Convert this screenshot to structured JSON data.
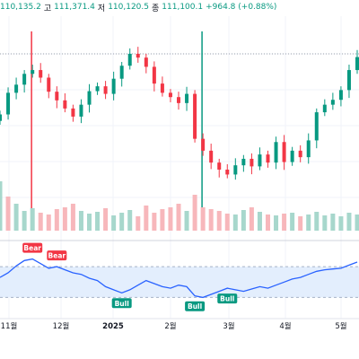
{
  "ohlc": {
    "open_value": "110,135.2",
    "high_label": "고",
    "high_value": "111,371.4",
    "low_label": "저",
    "low_value": "110,120.5",
    "close_label": "종",
    "close_value": "111,100.1",
    "change": "+964.8 (+0.88%)"
  },
  "colors": {
    "up": "#089981",
    "down": "#f23645",
    "rsi_line": "#2962ff",
    "rsi_band": "#e3eefd",
    "volume_up": "#a7d7cc",
    "volume_down": "#f7b7bb",
    "signal_bear": "#f23645",
    "signal_bull": "#089981",
    "grid": "#f0f3fa",
    "axis_text": "#131722"
  },
  "chart_data": [
    {
      "type": "candlestick",
      "panel": "price",
      "x_labels": [
        "11월",
        "12월",
        "2025",
        "2월",
        "3월",
        "4월",
        "5월"
      ],
      "close": [
        93000,
        97000,
        98500,
        100500,
        101200,
        99800,
        97200,
        95600,
        94100,
        92600,
        94800,
        97300,
        98200,
        96800,
        99600,
        102000,
        104200,
        103500,
        101800,
        98700,
        97000,
        96200,
        95100,
        96800,
        88500,
        86300,
        84100,
        82800,
        81900,
        83600,
        84800,
        83400,
        85600,
        84100,
        87900,
        84200,
        86300,
        85100,
        88200,
        93400,
        94800,
        95700,
        97500,
        101200,
        103600
      ],
      "grid": true,
      "vertical_markers": [
        {
          "name": "bear-signal",
          "index": 3,
          "color": "#f23645"
        },
        {
          "name": "bull-signal",
          "index": 24,
          "color": "#089981"
        }
      ]
    },
    {
      "type": "bar",
      "panel": "volume",
      "values": [
        55,
        38,
        30,
        22,
        25,
        20,
        18,
        24,
        26,
        30,
        22,
        19,
        21,
        25,
        17,
        20,
        23,
        16,
        28,
        20,
        24,
        26,
        30,
        22,
        40,
        26,
        24,
        22,
        19,
        18,
        23,
        26,
        21,
        18,
        17,
        19,
        20,
        16,
        18,
        21,
        17,
        19,
        16,
        20,
        18
      ],
      "up": [
        true,
        false,
        true,
        true,
        true,
        false,
        false,
        false,
        false,
        false,
        true,
        true,
        true,
        false,
        true,
        true,
        true,
        false,
        false,
        false,
        false,
        false,
        false,
        true,
        false,
        false,
        false,
        false,
        false,
        true,
        true,
        false,
        true,
        false,
        true,
        false,
        true,
        false,
        true,
        true,
        true,
        true,
        true,
        true,
        true
      ]
    },
    {
      "type": "line",
      "panel": "rsi",
      "values": [
        56,
        62,
        71,
        78,
        80,
        74,
        68,
        70,
        66,
        62,
        60,
        55,
        52,
        44,
        40,
        36,
        40,
        46,
        52,
        48,
        44,
        42,
        46,
        44,
        32,
        30,
        34,
        38,
        42,
        40,
        38,
        41,
        44,
        42,
        46,
        50,
        54,
        56,
        60,
        64,
        66,
        67,
        68,
        72,
        76
      ],
      "band": [
        30,
        70
      ],
      "ylim": [
        20,
        90
      ],
      "signals": [
        {
          "label": "Bear",
          "index": 4,
          "kind": "bear"
        },
        {
          "label": "Bear",
          "index": 7,
          "kind": "bear"
        },
        {
          "label": "Bull",
          "index": 15,
          "kind": "bull"
        },
        {
          "label": "Bull",
          "index": 24,
          "kind": "bull"
        },
        {
          "label": "Bull",
          "index": 28,
          "kind": "bull"
        }
      ]
    }
  ]
}
